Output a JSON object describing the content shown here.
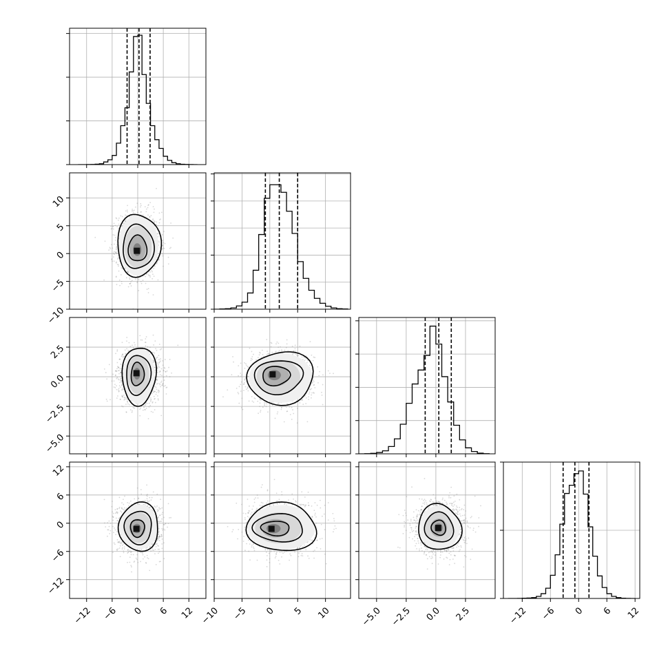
{
  "chart_data": {
    "type": "corner",
    "variables": 4,
    "grid": true,
    "colors": {
      "ink": "#000000",
      "grid": "#b0b0b0",
      "scatter": "#8c8c8c"
    },
    "marginals": [
      {
        "name": "",
        "range": [
          -16,
          16
        ],
        "bin_edges": [
          -14,
          -13,
          -12,
          -11,
          -10,
          -9,
          -8,
          -7,
          -6,
          -5,
          -4,
          -3,
          -2,
          -1,
          0,
          1,
          2,
          3,
          4,
          5,
          6,
          7,
          8,
          9,
          10,
          11,
          12,
          13,
          14
        ],
        "counts": [
          0,
          0,
          1,
          2,
          5,
          10,
          30,
          55,
          105,
          245,
          445,
          650,
          1060,
          1465,
          1480,
          1030,
          700,
          445,
          285,
          185,
          95,
          48,
          22,
          10,
          4,
          2,
          1,
          0
        ],
        "ymax": 1560,
        "yticks": [
          0,
          500,
          1000,
          1500
        ],
        "quantiles": [
          -2.5,
          0.3,
          2.9
        ]
      },
      {
        "name": "",
        "range": [
          -10,
          14.5
        ],
        "bin_edges": [
          -10,
          -9,
          -8,
          -7,
          -6,
          -5,
          -4,
          -3,
          -2,
          -1,
          0,
          1,
          2,
          3,
          4,
          5,
          6,
          7,
          8,
          9,
          10,
          11,
          12,
          13,
          14
        ],
        "counts": [
          0,
          2,
          5,
          12,
          30,
          65,
          150,
          360,
          690,
          1025,
          1150,
          1150,
          1080,
          905,
          700,
          440,
          285,
          175,
          100,
          55,
          28,
          12,
          5,
          2
        ],
        "ymax": 1260,
        "yticks": [
          0,
          250,
          500,
          750,
          1000,
          1250
        ],
        "quantiles": [
          -0.8,
          1.7,
          5.0
        ]
      },
      {
        "name": "",
        "range": [
          -6.5,
          5
        ],
        "bin_edges": [
          -6.5,
          -6,
          -5.5,
          -5,
          -4.5,
          -4,
          -3.5,
          -3,
          -2.5,
          -2,
          -1.5,
          -1,
          -0.5,
          0,
          0.5,
          1,
          1.5,
          2,
          2.5,
          3,
          3.5,
          4,
          4.5
        ],
        "counts": [
          0,
          2,
          8,
          20,
          45,
          110,
          225,
          445,
          760,
          1050,
          1260,
          1480,
          1920,
          1650,
          1160,
          780,
          430,
          210,
          90,
          35,
          10,
          2
        ],
        "ymax": 2050,
        "yticks": [
          0,
          500,
          1000,
          1500,
          2000
        ],
        "quantiles": [
          -0.9,
          0.25,
          1.3
        ]
      },
      {
        "name": "",
        "range": [
          -16,
          13
        ],
        "bin_edges": [
          -15,
          -14,
          -13,
          -12,
          -11,
          -10,
          -9,
          -8,
          -7,
          -6,
          -5,
          -4,
          -3,
          -2,
          -1,
          0,
          1,
          2,
          3,
          4,
          5,
          6,
          7,
          8,
          9,
          10,
          11,
          12
        ],
        "counts": [
          0,
          0,
          1,
          3,
          6,
          12,
          30,
          70,
          150,
          340,
          640,
          1090,
          1540,
          1660,
          1830,
          1870,
          1530,
          1050,
          620,
          330,
          160,
          70,
          30,
          12,
          4,
          1,
          0
        ],
        "ymax": 2000,
        "yticks": [
          0,
          1000,
          2000
        ],
        "quantiles": [
          -3.3,
          -0.8,
          2.2
        ]
      }
    ],
    "axis_tick_labels": {
      "x": [
        [
          "−12",
          "−6",
          "0",
          "6",
          "12"
        ],
        [
          "−10",
          "−5",
          "0",
          "5",
          "10"
        ],
        [
          "−5.0",
          "−2.5",
          "0.0",
          "2.5"
        ],
        [
          "−12",
          "−6",
          "0",
          "6",
          "12"
        ]
      ],
      "y": {
        "1": [
          "−10",
          "−5",
          "0",
          "5",
          "10"
        ],
        "2": [
          "−5.0",
          "−2.5",
          "0.0",
          "2.5"
        ],
        "3": [
          "−12",
          "−6",
          "0",
          "6",
          "12"
        ]
      }
    },
    "ticks": {
      "x": [
        [
          -12,
          -6,
          0,
          6,
          12
        ],
        [
          -10,
          -5,
          0,
          5,
          10
        ],
        [
          -5.0,
          -2.5,
          0.0,
          2.5
        ],
        [
          -12,
          -6,
          0,
          6,
          12
        ]
      ],
      "y": {
        "1": [
          -10,
          -5,
          0,
          5,
          10
        ],
        "2": [
          -5.0,
          -2.5,
          0.0,
          2.5
        ],
        "3": [
          -12,
          -6,
          0,
          6,
          12
        ]
      }
    },
    "pairs": [
      {
        "row": 1,
        "col": 0,
        "center": [
          0.2,
          1.5
        ],
        "sigma": [
          2.8,
          3.3
        ],
        "mode": [
          -0.2,
          0.5
        ],
        "contours": [
          [
            2.1,
            2.4
          ],
          [
            3.5,
            4.1
          ],
          [
            4.9,
            5.8
          ]
        ]
      },
      {
        "row": 2,
        "col": 0,
        "center": [
          0.3,
          0.1
        ],
        "sigma": [
          2.8,
          1.3
        ],
        "mode": [
          -0.3,
          0.3
        ],
        "contours": [
          [
            1.5,
            1.0
          ],
          [
            2.8,
            1.7
          ],
          [
            3.9,
            2.5
          ]
        ]
      },
      {
        "row": 2,
        "col": 1,
        "center": [
          2.0,
          -0.1
        ],
        "sigma": [
          3.2,
          1.2
        ],
        "mode": [
          0.5,
          0.2
        ],
        "contours": [
          [
            2.5,
            0.8
          ],
          [
            4.4,
            1.4
          ],
          [
            6.0,
            2.2
          ]
        ]
      },
      {
        "row": 3,
        "col": 0,
        "center": [
          0.3,
          -0.8
        ],
        "sigma": [
          2.8,
          3.0
        ],
        "mode": [
          -0.3,
          -1.2
        ],
        "contours": [
          [
            1.7,
            1.8
          ],
          [
            3.3,
            3.4
          ],
          [
            4.8,
            5.0
          ]
        ]
      },
      {
        "row": 3,
        "col": 1,
        "center": [
          2.1,
          -0.9
        ],
        "sigma": [
          3.3,
          3.0
        ],
        "mode": [
          0.3,
          -1.2
        ],
        "contours": [
          [
            2.6,
            1.5
          ],
          [
            4.6,
            2.9
          ],
          [
            6.4,
            5.0
          ]
        ]
      },
      {
        "row": 3,
        "col": 2,
        "center": [
          0.3,
          -0.9
        ],
        "sigma": [
          1.2,
          3.0
        ],
        "mode": [
          0.2,
          -1.0
        ],
        "contours": [
          [
            0.6,
            1.6
          ],
          [
            1.2,
            3.2
          ],
          [
            1.8,
            4.9
          ]
        ]
      }
    ]
  }
}
